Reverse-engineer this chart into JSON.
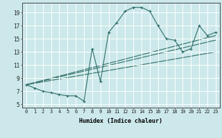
{
  "xlabel": "Humidex (Indice chaleur)",
  "bg_color": "#cce8ea",
  "grid_color": "#ffffff",
  "line_color": "#2d6e65",
  "xlim": [
    -0.5,
    23.5
  ],
  "ylim": [
    4.5,
    20.5
  ],
  "xticks": [
    0,
    1,
    2,
    3,
    4,
    5,
    6,
    7,
    8,
    9,
    10,
    11,
    12,
    13,
    14,
    15,
    16,
    17,
    18,
    19,
    20,
    21,
    22,
    23
  ],
  "yticks": [
    5,
    7,
    9,
    11,
    13,
    15,
    17,
    19
  ],
  "series": [
    [
      0,
      8.0
    ],
    [
      1,
      7.5
    ],
    [
      2,
      7.0
    ],
    [
      3,
      6.8
    ],
    [
      4,
      6.5
    ],
    [
      5,
      6.3
    ],
    [
      6,
      6.3
    ],
    [
      7,
      5.5
    ],
    [
      8,
      13.5
    ],
    [
      9,
      8.5
    ],
    [
      10,
      16.0
    ],
    [
      11,
      17.5
    ],
    [
      12,
      19.2
    ],
    [
      13,
      19.8
    ],
    [
      14,
      19.8
    ],
    [
      15,
      19.2
    ],
    [
      16,
      17.0
    ],
    [
      17,
      15.0
    ],
    [
      18,
      14.8
    ],
    [
      19,
      13.0
    ],
    [
      20,
      13.5
    ],
    [
      21,
      17.0
    ],
    [
      22,
      15.5
    ],
    [
      23,
      16.0
    ]
  ],
  "straight_lines": [
    [
      [
        0,
        8.0
      ],
      [
        23,
        15.5
      ]
    ],
    [
      [
        0,
        8.0
      ],
      [
        23,
        14.8
      ]
    ],
    [
      [
        0,
        8.0
      ],
      [
        23,
        13.0
      ]
    ]
  ]
}
